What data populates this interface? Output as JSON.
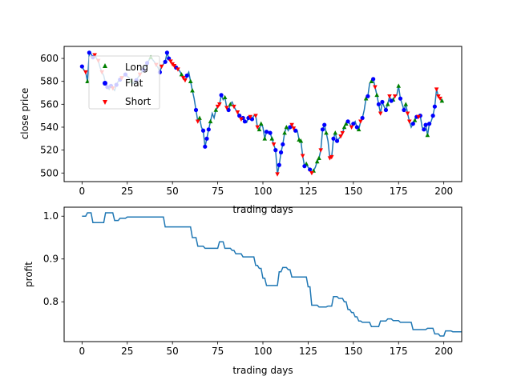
{
  "chart_data": [
    {
      "type": "line",
      "title": "",
      "xlabel": "trading days",
      "ylabel": "close price",
      "xlim": [
        -9.9,
        209.9
      ],
      "ylim": [
        492.5,
        610.5
      ],
      "xticks": [
        0,
        25,
        50,
        75,
        100,
        125,
        150,
        175,
        200
      ],
      "yticks": [
        500,
        520,
        540,
        560,
        580,
        600
      ],
      "grid": false,
      "legend_position": "upper-left",
      "line_color": "#1f77b4",
      "price_anchors": [
        [
          0,
          593
        ],
        [
          1,
          590
        ],
        [
          2,
          588
        ],
        [
          3,
          580
        ],
        [
          4,
          605
        ],
        [
          5,
          604
        ],
        [
          6,
          601
        ],
        [
          7,
          603
        ],
        [
          8,
          600
        ],
        [
          9,
          598
        ],
        [
          10,
          592
        ],
        [
          11,
          588
        ],
        [
          12,
          585
        ],
        [
          13,
          578
        ],
        [
          14,
          575
        ],
        [
          15,
          573
        ],
        [
          16,
          576
        ],
        [
          17,
          574
        ],
        [
          18,
          572
        ],
        [
          19,
          577
        ],
        [
          20,
          580
        ],
        [
          22,
          583
        ],
        [
          24,
          586
        ],
        [
          26,
          583
        ],
        [
          28,
          578
        ],
        [
          30,
          581
        ],
        [
          32,
          586
        ],
        [
          34,
          590
        ],
        [
          36,
          596
        ],
        [
          38,
          601
        ],
        [
          40,
          597
        ],
        [
          42,
          592
        ],
        [
          43,
          588
        ],
        [
          44,
          593
        ],
        [
          46,
          597
        ],
        [
          47,
          605
        ],
        [
          48,
          600
        ],
        [
          50,
          595
        ],
        [
          52,
          592
        ],
        [
          54,
          589
        ],
        [
          55,
          586
        ],
        [
          56,
          583
        ],
        [
          57,
          581
        ],
        [
          58,
          585
        ],
        [
          59,
          588
        ],
        [
          60,
          580
        ],
        [
          61,
          572
        ],
        [
          62,
          565
        ],
        [
          63,
          555
        ],
        [
          64,
          545
        ],
        [
          65,
          548
        ],
        [
          66,
          540
        ],
        [
          67,
          537
        ],
        [
          68,
          523
        ],
        [
          69,
          530
        ],
        [
          70,
          538
        ],
        [
          71,
          545
        ],
        [
          72,
          552
        ],
        [
          73,
          548
        ],
        [
          74,
          555
        ],
        [
          75,
          558
        ],
        [
          76,
          560
        ],
        [
          77,
          568
        ],
        [
          78,
          564
        ],
        [
          79,
          566
        ],
        [
          80,
          557
        ],
        [
          81,
          555
        ],
        [
          82,
          560
        ],
        [
          83,
          562
        ],
        [
          84,
          558
        ],
        [
          85,
          555
        ],
        [
          86,
          553
        ],
        [
          87,
          550
        ],
        [
          88,
          547
        ],
        [
          89,
          548
        ],
        [
          90,
          545
        ],
        [
          91,
          544
        ],
        [
          92,
          548
        ],
        [
          93,
          549
        ],
        [
          94,
          547
        ],
        [
          95,
          550
        ],
        [
          96,
          550
        ],
        [
          97,
          540
        ],
        [
          98,
          538
        ],
        [
          99,
          543
        ],
        [
          100,
          540
        ],
        [
          101,
          530
        ],
        [
          102,
          536
        ],
        [
          103,
          535
        ],
        [
          104,
          535
        ],
        [
          105,
          530
        ],
        [
          106,
          525
        ],
        [
          107,
          520
        ],
        [
          108,
          499
        ],
        [
          109,
          507
        ],
        [
          110,
          518
        ],
        [
          111,
          525
        ],
        [
          112,
          535
        ],
        [
          113,
          540
        ],
        [
          114,
          537
        ],
        [
          115,
          540
        ],
        [
          116,
          542
        ],
        [
          117,
          539
        ],
        [
          118,
          537
        ],
        [
          119,
          537
        ],
        [
          120,
          529
        ],
        [
          121,
          528
        ],
        [
          122,
          515
        ],
        [
          123,
          506
        ],
        [
          124,
          508
        ],
        [
          125,
          505
        ],
        [
          126,
          503
        ],
        [
          127,
          500
        ],
        [
          128,
          502
        ],
        [
          129,
          505
        ],
        [
          130,
          510
        ],
        [
          131,
          513
        ],
        [
          132,
          520
        ],
        [
          133,
          538
        ],
        [
          134,
          542
        ],
        [
          135,
          535
        ],
        [
          136,
          528
        ],
        [
          137,
          513
        ],
        [
          138,
          514
        ],
        [
          139,
          530
        ],
        [
          140,
          535
        ],
        [
          141,
          528
        ],
        [
          142,
          530
        ],
        [
          143,
          532
        ],
        [
          144,
          535
        ],
        [
          145,
          540
        ],
        [
          146,
          543
        ],
        [
          147,
          545
        ],
        [
          148,
          543
        ],
        [
          149,
          540
        ],
        [
          150,
          543
        ],
        [
          151,
          545
        ],
        [
          152,
          540
        ],
        [
          153,
          538
        ],
        [
          154,
          545
        ],
        [
          155,
          548
        ],
        [
          156,
          555
        ],
        [
          157,
          565
        ],
        [
          158,
          567
        ],
        [
          159,
          578
        ],
        [
          160,
          580
        ],
        [
          161,
          582
        ],
        [
          162,
          575
        ],
        [
          163,
          568
        ],
        [
          164,
          560
        ],
        [
          165,
          552
        ],
        [
          166,
          562
        ],
        [
          167,
          558
        ],
        [
          168,
          555
        ],
        [
          169,
          560
        ],
        [
          170,
          567
        ],
        [
          171,
          563
        ],
        [
          172,
          564
        ],
        [
          173,
          567
        ],
        [
          174,
          568
        ],
        [
          175,
          576
        ],
        [
          176,
          565
        ],
        [
          177,
          560
        ],
        [
          178,
          555
        ],
        [
          179,
          560
        ],
        [
          180,
          552
        ],
        [
          181,
          545
        ],
        [
          182,
          540
        ],
        [
          183,
          543
        ],
        [
          184,
          546
        ],
        [
          185,
          549
        ],
        [
          186,
          549
        ],
        [
          187,
          550
        ],
        [
          188,
          540
        ],
        [
          189,
          538
        ],
        [
          190,
          542
        ],
        [
          191,
          533
        ],
        [
          192,
          543
        ],
        [
          193,
          545
        ],
        [
          194,
          550
        ],
        [
          195,
          558
        ],
        [
          196,
          573
        ],
        [
          197,
          567
        ],
        [
          198,
          565
        ],
        [
          199,
          563
        ]
      ],
      "series": [
        {
          "name": "Long",
          "marker": "^",
          "color": "#008000",
          "x": [
            3,
            13,
            27,
            38,
            55,
            60,
            61,
            65,
            71,
            74,
            79,
            82,
            98,
            99,
            101,
            105,
            112,
            113,
            120,
            121,
            124,
            128,
            130,
            131,
            135,
            140,
            145,
            146,
            153,
            157,
            160,
            163,
            169,
            172,
            175,
            179,
            184,
            191,
            199
          ]
        },
        {
          "name": "Flat",
          "marker": "o",
          "color": "#0000ff",
          "x": [
            0,
            4,
            6,
            14,
            16,
            19,
            21,
            24,
            30,
            34,
            36,
            43,
            46,
            47,
            48,
            52,
            58,
            63,
            67,
            68,
            69,
            70,
            77,
            81,
            87,
            89,
            90,
            92,
            94,
            102,
            104,
            107,
            109,
            110,
            111,
            115,
            118,
            123,
            126,
            133,
            134,
            139,
            141,
            147,
            150,
            152,
            155,
            158,
            161,
            164,
            166,
            168,
            171,
            176,
            178,
            183,
            185,
            187,
            189,
            190,
            192,
            194,
            195
          ]
        },
        {
          "name": "Short",
          "marker": "v",
          "color": "#ff0000",
          "x": [
            2,
            7,
            9,
            11,
            17,
            22,
            32,
            41,
            44,
            49,
            50,
            51,
            53,
            56,
            57,
            64,
            75,
            76,
            80,
            84,
            86,
            88,
            93,
            96,
            97,
            106,
            108,
            116,
            117,
            122,
            127,
            132,
            137,
            138,
            143,
            144,
            149,
            154,
            162,
            165,
            170,
            173,
            180,
            181,
            186,
            196,
            197,
            198
          ]
        }
      ]
    },
    {
      "type": "line",
      "title": "",
      "xlabel": "trading days",
      "ylabel": "profit",
      "xlim": [
        -9.9,
        209.9
      ],
      "ylim": [
        0.707,
        1.021
      ],
      "xticks": [
        0,
        25,
        50,
        75,
        100,
        125,
        150,
        175,
        200
      ],
      "yticks": [
        0.8,
        0.9,
        1.0
      ],
      "grid": false,
      "line_color": "#1f77b4",
      "series": [
        {
          "name": "",
          "points": [
            [
              0,
              1.0
            ],
            [
              2,
              1.0
            ],
            [
              3,
              1.008
            ],
            [
              5,
              1.008
            ],
            [
              6,
              0.985
            ],
            [
              12,
              0.985
            ],
            [
              13,
              1.008
            ],
            [
              17,
              1.008
            ],
            [
              18,
              0.99
            ],
            [
              20,
              0.99
            ],
            [
              21,
              0.995
            ],
            [
              24,
              0.995
            ],
            [
              25,
              0.998
            ],
            [
              45,
              0.998
            ],
            [
              46,
              0.975
            ],
            [
              60,
              0.975
            ],
            [
              61,
              0.95
            ],
            [
              63,
              0.95
            ],
            [
              64,
              0.93
            ],
            [
              67,
              0.93
            ],
            [
              68,
              0.925
            ],
            [
              75,
              0.925
            ],
            [
              76,
              0.94
            ],
            [
              78,
              0.94
            ],
            [
              79,
              0.925
            ],
            [
              82,
              0.925
            ],
            [
              83,
              0.92
            ],
            [
              84,
              0.92
            ],
            [
              85,
              0.912
            ],
            [
              88,
              0.912
            ],
            [
              89,
              0.905
            ],
            [
              95,
              0.905
            ],
            [
              96,
              0.885
            ],
            [
              97,
              0.885
            ],
            [
              98,
              0.878
            ],
            [
              99,
              0.878
            ],
            [
              100,
              0.855
            ],
            [
              101,
              0.855
            ],
            [
              102,
              0.838
            ],
            [
              108,
              0.838
            ],
            [
              109,
              0.87
            ],
            [
              110,
              0.87
            ],
            [
              111,
              0.88
            ],
            [
              113,
              0.88
            ],
            [
              114,
              0.875
            ],
            [
              115,
              0.875
            ],
            [
              116,
              0.858
            ],
            [
              124,
              0.858
            ],
            [
              125,
              0.835
            ],
            [
              126,
              0.835
            ],
            [
              127,
              0.792
            ],
            [
              130,
              0.792
            ],
            [
              131,
              0.788
            ],
            [
              135,
              0.788
            ],
            [
              136,
              0.79
            ],
            [
              138,
              0.79
            ],
            [
              139,
              0.812
            ],
            [
              141,
              0.812
            ],
            [
              142,
              0.808
            ],
            [
              144,
              0.808
            ],
            [
              145,
              0.8
            ],
            [
              146,
              0.8
            ],
            [
              147,
              0.782
            ],
            [
              148,
              0.782
            ],
            [
              149,
              0.775
            ],
            [
              150,
              0.775
            ],
            [
              151,
              0.765
            ],
            [
              152,
              0.765
            ],
            [
              153,
              0.755
            ],
            [
              154,
              0.755
            ],
            [
              155,
              0.752
            ],
            [
              159,
              0.752
            ],
            [
              160,
              0.742
            ],
            [
              164,
              0.742
            ],
            [
              165,
              0.755
            ],
            [
              168,
              0.755
            ],
            [
              169,
              0.76
            ],
            [
              171,
              0.76
            ],
            [
              172,
              0.756
            ],
            [
              175,
              0.756
            ],
            [
              176,
              0.752
            ],
            [
              182,
              0.752
            ],
            [
              183,
              0.735
            ],
            [
              190,
              0.735
            ],
            [
              191,
              0.738
            ],
            [
              194,
              0.738
            ],
            [
              195,
              0.725
            ],
            [
              197,
              0.725
            ],
            [
              198,
              0.72
            ],
            [
              200,
              0.72
            ],
            [
              201,
              0.732
            ],
            [
              204,
              0.732
            ],
            [
              205,
              0.73
            ],
            [
              210,
              0.73
            ]
          ]
        }
      ]
    }
  ]
}
